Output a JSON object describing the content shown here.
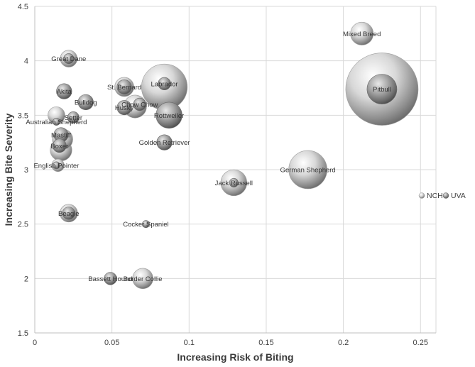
{
  "chart_data": {
    "type": "bubble",
    "xlabel": "Increasing Risk of Biting",
    "ylabel": "Increasing Bite Severity",
    "xlim": [
      0,
      0.26
    ],
    "ylim": [
      1.5,
      4.5
    ],
    "xticks": [
      0,
      0.05,
      0.1,
      0.15,
      0.2,
      0.25
    ],
    "xtick_labels": [
      "0",
      "0.05",
      "0.1",
      "0.15",
      "0.2",
      "0.25"
    ],
    "yticks": [
      1.5,
      2,
      2.5,
      3,
      3.5,
      4,
      4.5
    ],
    "ytick_labels": [
      "1.5",
      "2",
      "2.5",
      "3",
      "3.5",
      "4",
      "4.5"
    ],
    "grid": true,
    "legend_position": "right",
    "series": [
      {
        "name": "NCH",
        "color": "#c8c8c8",
        "points": [
          {
            "label": "Mixed Breed",
            "x": 0.212,
            "y": 4.25,
            "size": 0.1
          },
          {
            "label": "",
            "x": 0.225,
            "y": 3.74,
            "size": 1.0
          },
          {
            "label": "",
            "x": 0.084,
            "y": 3.76,
            "size": 0.4
          },
          {
            "label": "German Shepherd",
            "x": 0.177,
            "y": 3.0,
            "size": 0.28
          },
          {
            "label": "Jack Russell",
            "x": 0.129,
            "y": 2.88,
            "size": 0.13
          },
          {
            "label": "",
            "x": 0.058,
            "y": 3.76,
            "size": 0.07
          },
          {
            "label": "Great Dane",
            "x": 0.022,
            "y": 4.02,
            "size": 0.055
          },
          {
            "label": "",
            "x": 0.018,
            "y": 3.28,
            "size": 0.08
          },
          {
            "label": "",
            "x": 0.014,
            "y": 3.5,
            "size": 0.055
          },
          {
            "label": "Border Collie",
            "x": 0.07,
            "y": 2.0,
            "size": 0.08
          },
          {
            "label": "",
            "x": 0.022,
            "y": 2.6,
            "size": 0.06
          },
          {
            "label": "",
            "x": 0.065,
            "y": 3.58,
            "size": 0.1
          },
          {
            "label": "",
            "x": 0.017,
            "y": 3.18,
            "size": 0.09
          },
          {
            "label": "",
            "x": 0.015,
            "y": 3.04,
            "size": 0.03
          }
        ]
      },
      {
        "name": "UVA",
        "color": "#9a9a9a",
        "points": [
          {
            "label": "Pitbull",
            "x": 0.225,
            "y": 3.74,
            "size": 0.17
          },
          {
            "label": "Labrador",
            "x": 0.084,
            "y": 3.79,
            "size": 0.03
          },
          {
            "label": "Rottweiler",
            "x": 0.087,
            "y": 3.5,
            "size": 0.13
          },
          {
            "label": "Golden Retriever",
            "x": 0.084,
            "y": 3.25,
            "size": 0.045
          },
          {
            "label": "",
            "x": 0.129,
            "y": 2.88,
            "size": 0.015
          },
          {
            "label": "St. Bernard",
            "x": 0.058,
            "y": 3.76,
            "size": 0.04
          },
          {
            "label": "Chow Chow",
            "x": 0.068,
            "y": 3.6,
            "size": 0.03
          },
          {
            "label": "Husky",
            "x": 0.058,
            "y": 3.57,
            "size": 0.04
          },
          {
            "label": "Akita",
            "x": 0.019,
            "y": 3.72,
            "size": 0.045
          },
          {
            "label": "Bulldog",
            "x": 0.033,
            "y": 3.62,
            "size": 0.045
          },
          {
            "label": "Setter",
            "x": 0.025,
            "y": 3.48,
            "size": 0.025
          },
          {
            "label": "Australian Shepherd",
            "x": 0.014,
            "y": 3.44,
            "size": 0.01
          },
          {
            "label": "Mastiff",
            "x": 0.017,
            "y": 3.32,
            "size": 0.04
          },
          {
            "label": "Boxer",
            "x": 0.016,
            "y": 3.22,
            "size": 0.035
          },
          {
            "label": "English Pointer",
            "x": 0.014,
            "y": 3.04,
            "size": 0.01
          },
          {
            "label": "Beagle",
            "x": 0.022,
            "y": 2.6,
            "size": 0.03
          },
          {
            "label": "Cocker Spaniel",
            "x": 0.072,
            "y": 2.5,
            "size": 0.01
          },
          {
            "label": "Bassett Hound",
            "x": 0.049,
            "y": 2.0,
            "size": 0.03
          },
          {
            "label": "",
            "x": 0.022,
            "y": 4.02,
            "size": 0.02
          }
        ]
      }
    ]
  }
}
